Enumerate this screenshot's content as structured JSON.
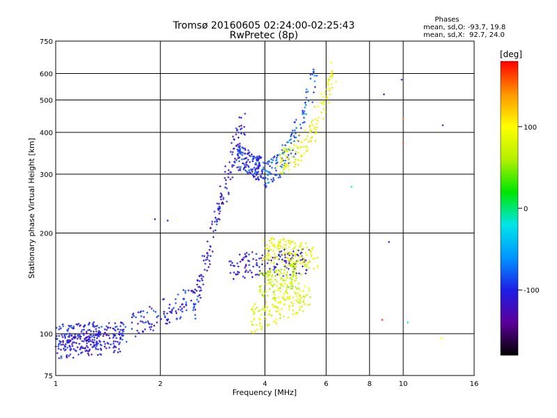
{
  "chart_data": {
    "type": "scatter",
    "title": "Tromsø 20160605 02:24:00-02:25:43",
    "subtitle": "RwPretec (8p)",
    "xlabel": "Frequency [MHz]",
    "ylabel": "Stationary phase Virtual Height [km]",
    "xscale": "log2",
    "yscale": "log",
    "xlim": [
      1,
      16
    ],
    "ylim": [
      75,
      750
    ],
    "x_ticks": [
      1,
      2,
      4,
      6,
      8,
      10,
      16
    ],
    "x_tick_labels": [
      "1",
      "2",
      "4",
      "6",
      "8",
      "10",
      "16"
    ],
    "y_ticks": [
      75,
      100,
      200,
      300,
      400,
      500,
      600,
      750
    ],
    "y_tick_labels": [
      "75",
      "100",
      "200",
      "300",
      "400",
      "500",
      "600",
      "750"
    ],
    "grid": true,
    "stats": {
      "header": "Phases",
      "line_o": "mean, sd,O: -93.7, 19.8",
      "line_x": "mean, sd,X:  92.7, 24.0"
    },
    "colorbar": {
      "label": "[deg]",
      "range": [
        -180,
        180
      ],
      "ticks": [
        100,
        0,
        -100
      ],
      "tick_labels": [
        "100",
        "0",
        "-100"
      ],
      "colormap": [
        "#000000",
        "#5a0099",
        "#1e1ee6",
        "#0096ff",
        "#00e6e6",
        "#00e600",
        "#b4f000",
        "#ffff00",
        "#ff9600",
        "#ff0000"
      ]
    },
    "traces": [
      {
        "name": "",
        "x_range": [
          1.0,
          1.4
        ],
        "h_start": 98,
        "h_end": 100,
        "phase": -105,
        "shape": "linear"
      },
      {
        "name": "",
        "x_range": [
          1.0,
          1.55
        ],
        "h_start": 92,
        "h_end": 95,
        "phase": -110,
        "shape": "linear"
      },
      {
        "name": "",
        "x_range": [
          1.4,
          2.6
        ],
        "h_start": 98,
        "h_end": 130,
        "phase": -100,
        "shape": "linear"
      },
      {
        "name": "",
        "x_range": [
          2.5,
          3.5
        ],
        "h_start": 120,
        "h_end": 450,
        "phase": -110,
        "shape": "linear"
      },
      {
        "name": "",
        "x_range": [
          3.3,
          3.9
        ],
        "h_start": 340,
        "h_end": 310,
        "phase": -100,
        "shape": "linear"
      },
      {
        "name": "",
        "x_range": [
          3.9,
          5.6
        ],
        "h_start": 300,
        "h_end": 620,
        "phase": -80,
        "shape": "cusp"
      },
      {
        "name": "",
        "x_range": [
          4.4,
          6.3
        ],
        "h_start": 330,
        "h_end": 620,
        "phase": 90,
        "shape": "cusp"
      },
      {
        "name": "",
        "x_range": [
          3.2,
          5.3
        ],
        "h_start": 160,
        "h_end": 165,
        "phase": -110,
        "shape": "linear"
      },
      {
        "name": "",
        "x_range": [
          3.6,
          5.4
        ],
        "h_start": 110,
        "h_end": 130,
        "phase": 85,
        "shape": "linear"
      },
      {
        "name": "",
        "x_range": [
          4.0,
          5.6
        ],
        "h_start": 180,
        "h_end": 170,
        "phase": 90,
        "shape": "linear"
      },
      {
        "name": "",
        "x_range": [
          3.9,
          5.0
        ],
        "h_start": 140,
        "h_end": 150,
        "phase": 70,
        "shape": "linear"
      }
    ],
    "isolated_points": [
      {
        "x": 8.8,
        "y": 520,
        "phase": -110
      },
      {
        "x": 9.9,
        "y": 575,
        "phase": -100
      },
      {
        "x": 10.0,
        "y": 440,
        "phase": 150
      },
      {
        "x": 10.0,
        "y": 370,
        "phase": 160
      },
      {
        "x": 13.0,
        "y": 420,
        "phase": -120
      },
      {
        "x": 9.1,
        "y": 188,
        "phase": -120
      },
      {
        "x": 8.7,
        "y": 110,
        "phase": 170
      },
      {
        "x": 10.3,
        "y": 108,
        "phase": -20
      },
      {
        "x": 7.1,
        "y": 275,
        "phase": -10
      },
      {
        "x": 12.9,
        "y": 97,
        "phase": 100
      },
      {
        "x": 1.93,
        "y": 220,
        "phase": -110
      },
      {
        "x": 2.1,
        "y": 218,
        "phase": -100
      }
    ]
  }
}
